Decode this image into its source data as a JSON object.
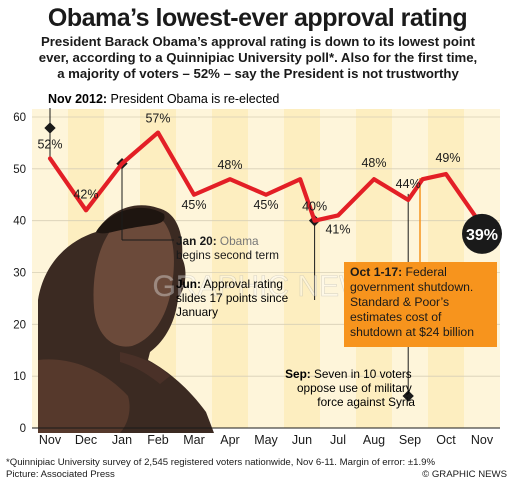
{
  "headline": "Obama’s lowest-ever approval rating",
  "subhead": [
    "President Barack Obama’s approval rating is down to its lowest point",
    "ever, according to a Quinnipiac University poll*. Also for the first time,",
    "a majority of voters – 52% – say the President is not trustworthy"
  ],
  "colors": {
    "line": "#e31f26",
    "callout": "#f7941d",
    "band": "#fef5da",
    "band_alt": "#fdeec0",
    "highlight": "#1a1a1a"
  },
  "chart_data": {
    "type": "line",
    "categories": [
      "Nov",
      "Dec",
      "Jan",
      "Feb",
      "Mar",
      "Apr",
      "May",
      "Jun",
      "Jul",
      "Aug",
      "Sep",
      "Oct",
      "Nov"
    ],
    "x": [
      "Nov",
      "Dec",
      "Jan",
      "Feb",
      "Mar",
      "Apr",
      "May",
      "Jun",
      "Jun",
      "Jul",
      "Aug",
      "Sep",
      "Sep",
      "Oct",
      "Nov"
    ],
    "values": [
      52,
      42,
      51,
      57,
      45,
      48,
      45,
      48,
      40,
      41,
      48,
      44,
      48,
      49,
      39
    ],
    "labels": [
      "52%",
      "42%",
      "",
      "57%",
      "45%",
      "48%",
      "45%",
      "",
      "40%",
      "41%",
      "48%",
      "44%",
      "",
      "49%",
      "39%"
    ],
    "highlight_label": "39%",
    "ylim": [
      0,
      60
    ],
    "yticks": [
      "0",
      "10",
      "20",
      "30",
      "40",
      "50",
      "60"
    ],
    "xlabel": "",
    "ylabel": "",
    "grid": true
  },
  "annotations": {
    "nov2012_bold": "Nov 2012:",
    "nov2012_text": " President Obama is re-elected",
    "jan20_bold": "Jan 20:",
    "jan20_line1": " Obama",
    "jan20_line2": "begins second term",
    "jun_bold": "Jun:",
    "jun_line1": " Approval rating",
    "jun_line2": "slides 17 points since",
    "jun_line3": "January",
    "sep_bold": "Sep:",
    "sep_line1": " Seven in 10 voters",
    "sep_line2": "oppose use of military",
    "sep_line3": "force against Syria",
    "oct_bold": "Oct 1-17:",
    "oct_line1": " Federal",
    "oct_line2": "government shutdown.",
    "oct_line3": "Standard & Poor’s",
    "oct_line4": "estimates cost of",
    "oct_line5": "shutdown at $24 billion"
  },
  "watermark": "GRAPHIC NEWS",
  "footer": [
    "*Quinnipiac University survey of 2,545 registered voters nationwide, Nov 6-11. Margin of error: ±1.9%",
    "Picture: Associated Press"
  ],
  "credit": "© GRAPHIC NEWS"
}
